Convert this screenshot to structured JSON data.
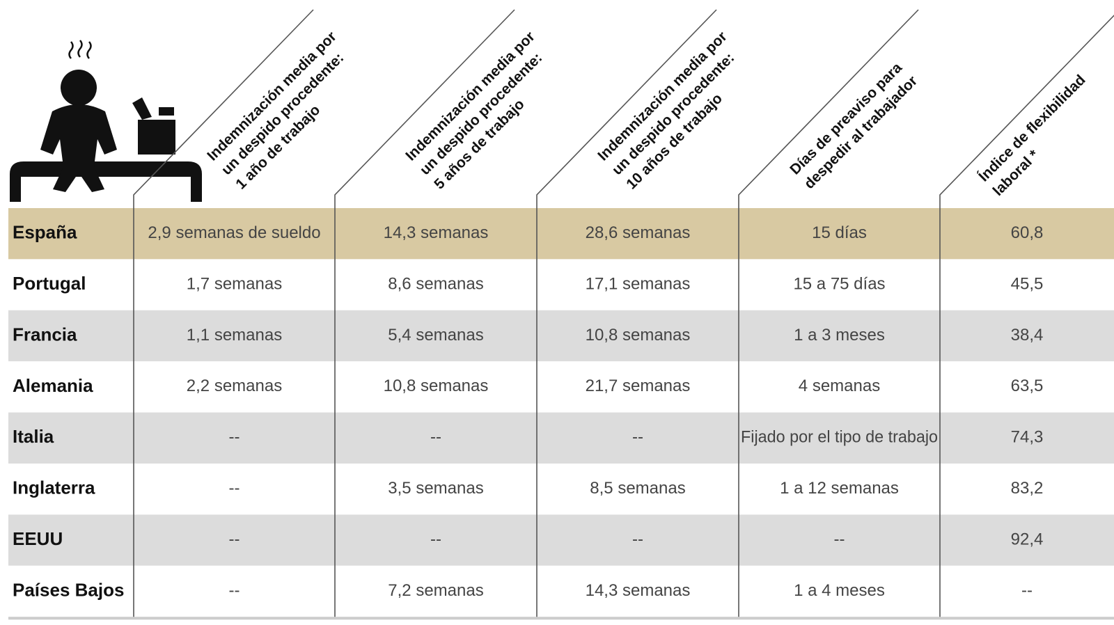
{
  "table": {
    "headers": [
      [
        "Indemnización media por",
        "un despido procedente:",
        "1 año de trabajo"
      ],
      [
        "Indemnización media por",
        "un despido procedente:",
        "5 años de trabajo"
      ],
      [
        "Indemnización media por",
        "un despido procedente:",
        "10 años de trabajo"
      ],
      [
        "Días de preaviso para",
        "despedir al trabajador"
      ],
      [
        "Índice de flexibilidad",
        "laboral *"
      ]
    ],
    "rows": [
      [
        "España",
        "2,9 semanas de sueldo",
        "14,3 semanas",
        "28,6 semanas",
        "15 días",
        "60,8"
      ],
      [
        "Portugal",
        "1,7 semanas",
        "8,6 semanas",
        "17,1 semanas",
        "15 a 75 días",
        "45,5"
      ],
      [
        "Francia",
        "1,1 semanas",
        "5,4 semanas",
        "10,8 semanas",
        "1 a 3 meses",
        "38,4"
      ],
      [
        "Alemania",
        "2,2 semanas",
        "10,8 semanas",
        "21,7 semanas",
        "4 semanas",
        "63,5"
      ],
      [
        "Italia",
        "--",
        "--",
        "--",
        "Fijado por el tipo de trabajo",
        "74,3"
      ],
      [
        "Inglaterra",
        "--",
        "3,5 semanas",
        "8,5 semanas",
        "1 a 12 semanas",
        "83,2"
      ],
      [
        "EEUU",
        "--",
        "--",
        "--",
        "--",
        "92,4"
      ],
      [
        "Países Bajos",
        "--",
        "7,2 semanas",
        "14,3 semanas",
        "1 a 4 meses",
        "--"
      ]
    ]
  }
}
